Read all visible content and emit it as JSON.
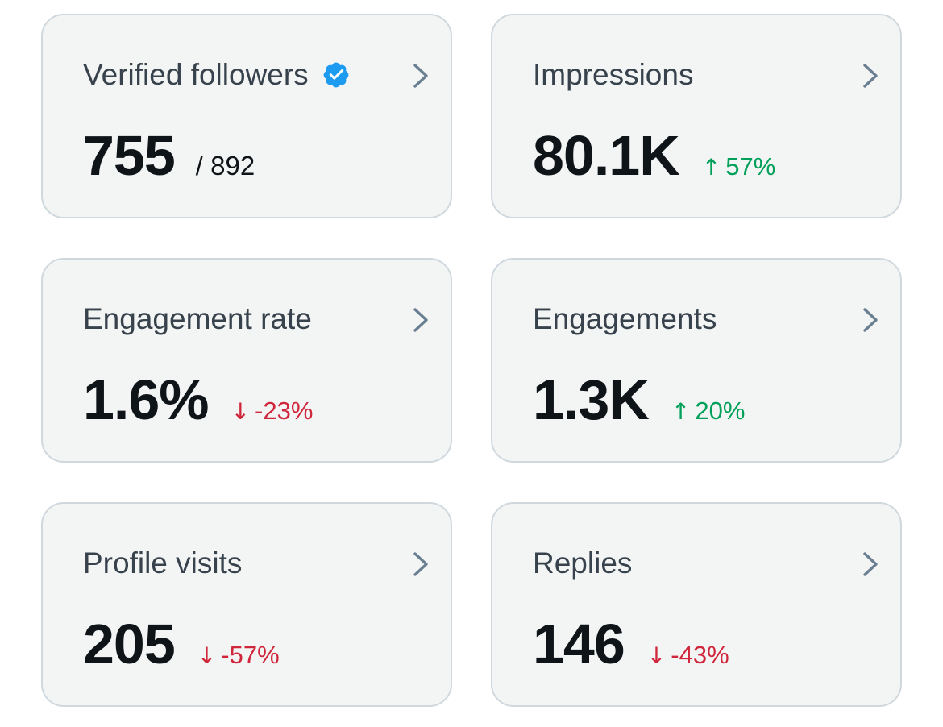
{
  "colors": {
    "card_bg": "#f3f5f5",
    "card_border": "#d0d8de",
    "title_text": "#37424c",
    "value_text": "#0f1419",
    "positive": "#00a05a",
    "negative": "#d0263b",
    "verified_badge": "#1d9bf0",
    "chevron": "#6a7f91"
  },
  "cards": [
    {
      "title": "Verified followers",
      "icon": "verified-badge-icon",
      "value": "755",
      "total": "/ 892"
    },
    {
      "title": "Impressions",
      "value": "80.1K",
      "delta": {
        "direction": "up",
        "arrow": "↑",
        "text": "57%"
      }
    },
    {
      "title": "Engagement rate",
      "value": "1.6%",
      "delta": {
        "direction": "down",
        "arrow": "↓",
        "text": "-23%"
      }
    },
    {
      "title": "Engagements",
      "value": "1.3K",
      "delta": {
        "direction": "up",
        "arrow": "↑",
        "text": "20%"
      }
    },
    {
      "title": "Profile visits",
      "value": "205",
      "delta": {
        "direction": "down",
        "arrow": "↓",
        "text": "-57%"
      }
    },
    {
      "title": "Replies",
      "value": "146",
      "delta": {
        "direction": "down",
        "arrow": "↓",
        "text": "-43%"
      }
    }
  ]
}
